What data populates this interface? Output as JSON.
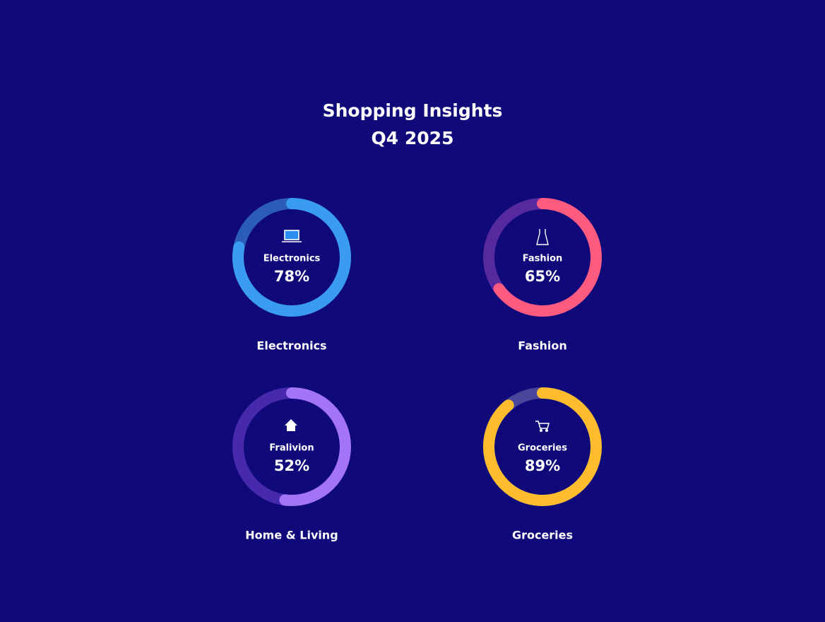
{
  "title": "Shopping Insights",
  "subtitle": "Q4 2025",
  "chart_data": [
    {
      "type": "ring",
      "title": "Electronics",
      "label": "Electronics",
      "values": [
        78
      ],
      "value_labels": [
        "78%"
      ],
      "color": "#3a9cf0",
      "track_color": "#2a5cb8",
      "ylim": [
        0,
        100
      ]
    },
    {
      "type": "ring",
      "title": "Fashion",
      "label": "Fashion",
      "values": [
        65
      ],
      "value_labels": [
        "65%"
      ],
      "color": "#ff5a80",
      "track_color": "#56299e",
      "ylim": [
        0,
        100
      ]
    },
    {
      "type": "ring",
      "title": "Home & Living",
      "label": "Fralivion",
      "values": [
        52
      ],
      "value_labels": [
        "52%"
      ],
      "color": "#a374f6",
      "track_color": "#4629ad",
      "ylim": [
        0,
        100
      ]
    },
    {
      "type": "ring",
      "title": "Groceries",
      "label": "Groceries",
      "values": [
        89
      ],
      "value_labels": [
        "89%"
      ],
      "color": "#ffbd2e",
      "track_color": "#47469a",
      "ylim": [
        0,
        100
      ]
    }
  ]
}
